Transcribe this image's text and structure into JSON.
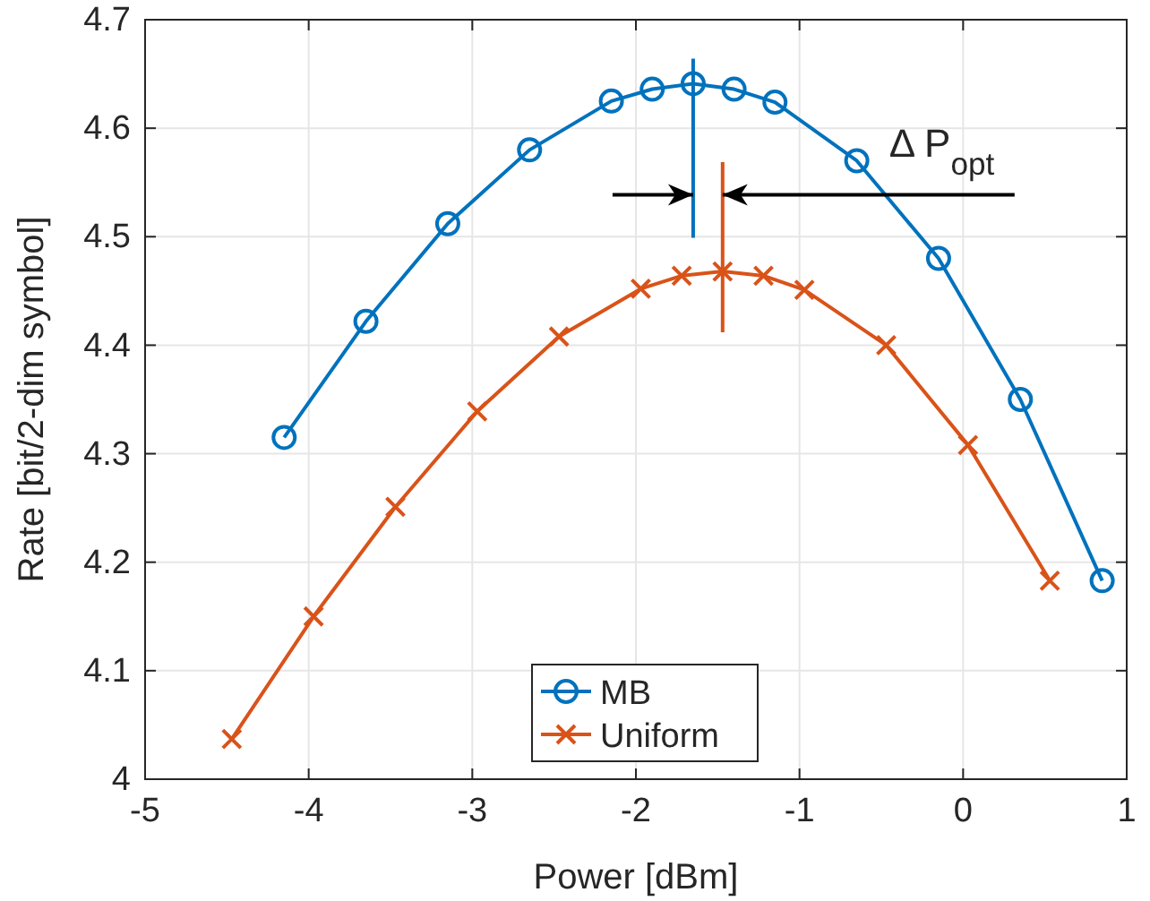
{
  "chart_data": {
    "type": "line",
    "xlabel": "Power [dBm]",
    "ylabel": "Rate [bit/2-dim symbol]",
    "xlim": [
      -5,
      1
    ],
    "xticks": [
      -5,
      -4,
      -3,
      -2,
      -1,
      0,
      1
    ],
    "ylim": [
      4,
      4.7
    ],
    "yticks": [
      4,
      4.1,
      4.2,
      4.3,
      4.4,
      4.5,
      4.6,
      4.7
    ],
    "grid": true,
    "legend": "bottom",
    "series": [
      {
        "name": "MB",
        "color": "#0072bd",
        "marker": "circle",
        "x": [
          -4.15,
          -3.65,
          -3.15,
          -2.65,
          -2.15,
          -1.9,
          -1.65,
          -1.4,
          -1.15,
          -0.65,
          -0.15,
          0.35,
          0.85
        ],
        "values": [
          4.315,
          4.422,
          4.512,
          4.58,
          4.625,
          4.636,
          4.641,
          4.636,
          4.624,
          4.57,
          4.48,
          4.35,
          4.183
        ]
      },
      {
        "name": "Uniform",
        "color": "#d95319",
        "marker": "cross",
        "x": [
          -4.47,
          -3.97,
          -3.47,
          -2.97,
          -2.47,
          -1.97,
          -1.72,
          -1.47,
          -1.22,
          -0.97,
          -0.47,
          0.03,
          0.53
        ],
        "values": [
          4.037,
          4.15,
          4.251,
          4.339,
          4.408,
          4.452,
          4.464,
          4.468,
          4.464,
          4.451,
          4.4,
          4.308,
          4.183
        ]
      }
    ],
    "annotations": [
      "Δ P$_{opt}$"
    ]
  }
}
